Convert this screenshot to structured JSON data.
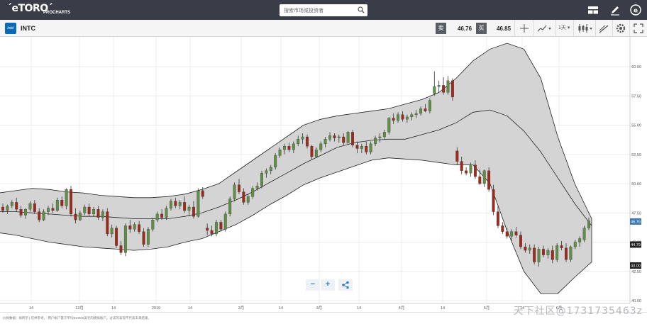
{
  "header": {
    "logo": "´eTORO´",
    "logo_sub": "PROCHARTS",
    "search_placeholder": "搜索市场或投资者"
  },
  "toolbar": {
    "symbol": "INTC",
    "logo_label": "intel",
    "sell_label": "卖",
    "sell_price": "46.76",
    "buy_label": "买",
    "buy_price": "46.85",
    "interval": "1天"
  },
  "footer": {
    "disclaimer": "价格数据：如所示 | 仅供参考。 用户帐户基于平均$10000美元的模拟账户。过去的表现不代表未来结果。"
  },
  "watermark": "天下社区@1731735463z",
  "chart_data": {
    "type": "candlestick",
    "symbol": "INTC",
    "ylim": [
      40,
      62
    ],
    "y_ticks": [
      "40.00",
      "42.50",
      "45.00",
      "47.50",
      "50.00",
      "52.50",
      "55.00",
      "57.50",
      "60.00"
    ],
    "x_tick_labels": [
      "14",
      "12月",
      "14",
      "2019",
      "14",
      "2月",
      "14",
      "3月",
      "14",
      "4月",
      "14",
      "5月",
      "14",
      "6月"
    ],
    "price_labels": [
      {
        "value": 46.76,
        "label": "46.76",
        "color": "#3c78b4"
      },
      {
        "value": 44.79,
        "label": "44.79",
        "color": "#222222"
      },
      {
        "value": 43.0,
        "label": "43.00",
        "color": "#222222"
      }
    ],
    "bollinger": {
      "upper": [
        49.2,
        49.4,
        49.6,
        49.5,
        49.3,
        49.2,
        49.0,
        48.9,
        48.8,
        48.8,
        48.9,
        49.1,
        49.5,
        50.0,
        51.0,
        52.0,
        53.0,
        54.0,
        55.0,
        55.5,
        55.8,
        56.0,
        56.2,
        56.4,
        56.8,
        57.2,
        57.8,
        59.0,
        60.5,
        61.5,
        62.0,
        61.5,
        59.0,
        54.0,
        50.0,
        47.0
      ],
      "middle": [
        47.6,
        47.6,
        47.5,
        47.4,
        47.3,
        47.2,
        47.2,
        47.1,
        47.0,
        47.0,
        47.0,
        47.2,
        47.5,
        48.0,
        48.6,
        49.3,
        50.1,
        50.9,
        51.7,
        52.4,
        53.1,
        53.5,
        53.7,
        53.8,
        53.8,
        54.2,
        54.6,
        55.2,
        56.1,
        56.3,
        55.8,
        54.5,
        52.7,
        50.5,
        48.3,
        46.4
      ],
      "lower": [
        45.8,
        45.6,
        45.3,
        45.0,
        44.8,
        44.6,
        44.5,
        44.4,
        44.3,
        44.4,
        44.6,
        45.0,
        45.3,
        45.9,
        46.5,
        47.3,
        48.2,
        49.0,
        49.9,
        50.5,
        51.0,
        51.5,
        52.0,
        52.2,
        52.1,
        52.0,
        51.8,
        51.6,
        51.6,
        50.0,
        46.0,
        42.5,
        40.6,
        40.6,
        42.0,
        43.3
      ]
    },
    "candles": [
      [
        48.0,
        48.3,
        47.5,
        47.7
      ],
      [
        47.7,
        48.2,
        47.4,
        48.1
      ],
      [
        48.1,
        48.6,
        47.9,
        48.4
      ],
      [
        48.4,
        48.8,
        47.6,
        47.8
      ],
      [
        47.8,
        48.1,
        47.1,
        47.3
      ],
      [
        47.3,
        47.9,
        47.0,
        47.8
      ],
      [
        47.8,
        48.5,
        47.6,
        48.3
      ],
      [
        48.3,
        48.6,
        47.4,
        47.6
      ],
      [
        47.6,
        47.9,
        46.7,
        46.9
      ],
      [
        46.9,
        47.8,
        46.8,
        47.6
      ],
      [
        47.6,
        48.1,
        47.3,
        47.9
      ],
      [
        47.9,
        48.3,
        47.5,
        47.7
      ],
      [
        47.7,
        48.8,
        47.6,
        48.6
      ],
      [
        48.6,
        48.9,
        47.9,
        48.1
      ],
      [
        48.1,
        49.6,
        47.8,
        49.5
      ],
      [
        49.5,
        49.8,
        47.2,
        47.4
      ],
      [
        47.4,
        47.9,
        46.6,
        46.9
      ],
      [
        46.9,
        47.7,
        46.8,
        47.5
      ],
      [
        47.5,
        48.2,
        47.3,
        48.0
      ],
      [
        48.0,
        48.3,
        47.2,
        47.4
      ],
      [
        47.4,
        48.0,
        47.2,
        47.8
      ],
      [
        47.8,
        48.1,
        46.9,
        47.1
      ],
      [
        47.1,
        47.8,
        46.8,
        47.6
      ],
      [
        47.6,
        47.9,
        45.5,
        45.7
      ],
      [
        45.7,
        46.5,
        45.4,
        46.2
      ],
      [
        46.2,
        46.4,
        44.5,
        44.7
      ],
      [
        44.7,
        45.1,
        43.9,
        44.1
      ],
      [
        44.1,
        46.6,
        43.8,
        46.4
      ],
      [
        46.4,
        46.9,
        45.8,
        46.1
      ],
      [
        46.1,
        46.7,
        45.9,
        46.5
      ],
      [
        46.5,
        46.8,
        45.7,
        45.9
      ],
      [
        45.9,
        46.2,
        44.6,
        44.8
      ],
      [
        44.8,
        46.3,
        44.6,
        46.1
      ],
      [
        46.1,
        47.1,
        45.9,
        46.9
      ],
      [
        46.9,
        47.6,
        46.7,
        47.4
      ],
      [
        47.4,
        47.8,
        46.9,
        47.1
      ],
      [
        47.1,
        48.1,
        46.9,
        47.9
      ],
      [
        47.9,
        48.7,
        47.7,
        48.5
      ],
      [
        48.5,
        48.8,
        47.9,
        48.1
      ],
      [
        48.1,
        48.6,
        47.8,
        48.4
      ],
      [
        48.4,
        48.9,
        47.5,
        47.7
      ],
      [
        47.7,
        48.2,
        47.2,
        48.0
      ],
      [
        48.0,
        48.5,
        47.0,
        47.2
      ],
      [
        47.2,
        49.6,
        47.1,
        49.4
      ],
      [
        49.4,
        49.7,
        48.7,
        48.9
      ],
      [
        46.2,
        46.6,
        45.6,
        46.0
      ],
      [
        46.0,
        46.4,
        45.5,
        45.7
      ],
      [
        45.7,
        46.9,
        45.5,
        46.7
      ],
      [
        46.7,
        46.9,
        45.9,
        46.1
      ],
      [
        46.1,
        47.6,
        45.9,
        47.4
      ],
      [
        47.4,
        48.9,
        47.2,
        48.7
      ],
      [
        48.7,
        50.1,
        48.5,
        49.9
      ],
      [
        49.9,
        50.4,
        49.1,
        49.3
      ],
      [
        49.3,
        49.6,
        48.2,
        48.4
      ],
      [
        48.4,
        49.1,
        48.2,
        48.9
      ],
      [
        48.9,
        49.8,
        48.7,
        49.6
      ],
      [
        49.6,
        50.1,
        49.4,
        49.8
      ],
      [
        49.8,
        51.1,
        49.6,
        50.9
      ],
      [
        50.9,
        51.3,
        50.5,
        51.1
      ],
      [
        51.1,
        51.6,
        50.8,
        51.4
      ],
      [
        51.4,
        52.6,
        51.2,
        52.4
      ],
      [
        52.4,
        53.1,
        52.2,
        52.9
      ],
      [
        52.9,
        53.4,
        52.5,
        53.2
      ],
      [
        53.2,
        53.5,
        52.7,
        52.9
      ],
      [
        52.9,
        53.6,
        52.6,
        53.4
      ],
      [
        53.4,
        54.1,
        53.2,
        53.8
      ],
      [
        53.8,
        54.3,
        53.4,
        54.0
      ],
      [
        54.0,
        54.2,
        53.0,
        53.2
      ],
      [
        53.2,
        53.3,
        52.1,
        52.3
      ],
      [
        52.3,
        53.1,
        52.2,
        52.9
      ],
      [
        52.9,
        53.6,
        52.7,
        53.4
      ],
      [
        53.4,
        54.0,
        53.1,
        53.8
      ],
      [
        53.8,
        54.4,
        53.6,
        54.1
      ],
      [
        54.1,
        54.3,
        53.6,
        53.9
      ],
      [
        53.9,
        54.2,
        53.5,
        54.0
      ],
      [
        54.0,
        54.3,
        53.3,
        53.5
      ],
      [
        53.5,
        54.5,
        53.3,
        54.4
      ],
      [
        54.4,
        54.6,
        53.1,
        53.3
      ],
      [
        53.3,
        53.6,
        52.6,
        53.0
      ],
      [
        53.0,
        53.4,
        52.6,
        53.2
      ],
      [
        53.2,
        53.6,
        52.5,
        52.7
      ],
      [
        52.7,
        53.6,
        52.5,
        53.4
      ],
      [
        53.4,
        54.1,
        53.2,
        53.9
      ],
      [
        53.9,
        54.3,
        53.5,
        54.0
      ],
      [
        54.0,
        54.6,
        53.8,
        54.4
      ],
      [
        54.4,
        55.7,
        54.2,
        55.6
      ],
      [
        55.6,
        56.0,
        55.1,
        55.4
      ],
      [
        55.4,
        56.1,
        55.2,
        55.9
      ],
      [
        55.9,
        56.2,
        55.3,
        55.5
      ],
      [
        55.5,
        55.9,
        55.2,
        55.7
      ],
      [
        55.7,
        56.1,
        55.4,
        55.9
      ],
      [
        55.9,
        56.3,
        55.6,
        56.0
      ],
      [
        56.0,
        56.6,
        55.8,
        56.4
      ],
      [
        56.4,
        56.8,
        56.1,
        56.2
      ],
      [
        56.2,
        57.3,
        56.0,
        57.1
      ],
      [
        57.7,
        59.6,
        57.5,
        58.3
      ],
      [
        58.3,
        58.8,
        57.8,
        58.4
      ],
      [
        58.4,
        59.1,
        57.6,
        57.8
      ],
      [
        57.8,
        59.2,
        57.6,
        58.8
      ],
      [
        58.8,
        59.0,
        57.1,
        57.4
      ],
      [
        52.8,
        53.1,
        51.6,
        51.9
      ],
      [
        51.9,
        52.3,
        50.8,
        51.1
      ],
      [
        51.1,
        51.4,
        50.7,
        50.9
      ],
      [
        50.9,
        51.8,
        50.6,
        51.6
      ],
      [
        51.6,
        52.0,
        50.4,
        50.6
      ],
      [
        50.6,
        51.2,
        49.9,
        50.0
      ],
      [
        50.0,
        51.2,
        49.7,
        51.1
      ],
      [
        51.1,
        51.4,
        49.3,
        49.5
      ],
      [
        49.5,
        49.9,
        47.3,
        47.6
      ],
      [
        47.6,
        48.1,
        46.2,
        46.4
      ],
      [
        46.4,
        46.7,
        45.7,
        45.9
      ],
      [
        45.9,
        46.2,
        45.3,
        45.5
      ],
      [
        45.5,
        46.1,
        45.1,
        45.9
      ],
      [
        45.9,
        46.3,
        45.4,
        45.6
      ],
      [
        45.6,
        45.9,
        44.4,
        44.6
      ],
      [
        44.6,
        44.9,
        44.1,
        44.3
      ],
      [
        44.3,
        44.8,
        44.0,
        44.5
      ],
      [
        44.5,
        44.8,
        43.1,
        43.3
      ],
      [
        43.3,
        44.6,
        42.9,
        44.4
      ],
      [
        44.4,
        44.7,
        43.7,
        43.9
      ],
      [
        43.9,
        44.5,
        43.6,
        44.3
      ],
      [
        44.3,
        44.7,
        43.2,
        43.5
      ],
      [
        43.5,
        44.9,
        43.3,
        44.7
      ],
      [
        44.7,
        45.1,
        44.3,
        44.5
      ],
      [
        44.5,
        44.9,
        43.3,
        43.5
      ],
      [
        43.5,
        44.7,
        43.3,
        44.6
      ],
      [
        44.6,
        45.2,
        44.4,
        45.0
      ],
      [
        45.0,
        45.5,
        44.6,
        45.3
      ],
      [
        45.2,
        46.4,
        45.0,
        46.2
      ],
      [
        46.2,
        47.1,
        46.0,
        46.8
      ]
    ]
  }
}
